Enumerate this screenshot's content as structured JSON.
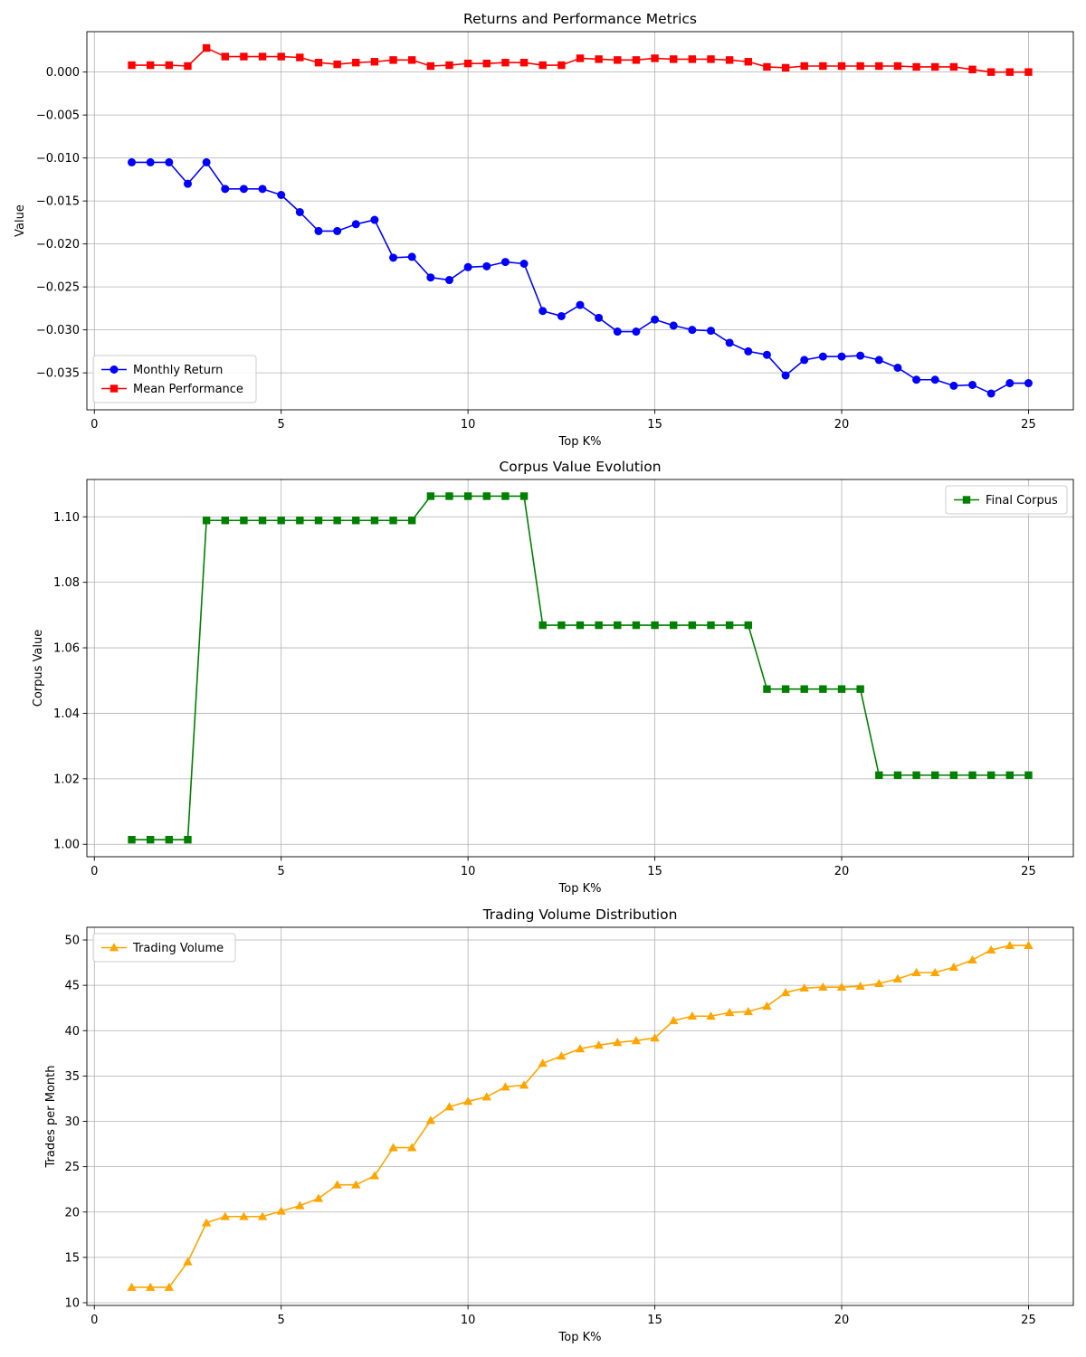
{
  "chart_data": [
    {
      "type": "line",
      "title": "Returns and Performance Metrics",
      "xlabel": "Top K%",
      "ylabel": "Value",
      "xlim": [
        -0.2,
        26.2
      ],
      "ylim": [
        -0.0393,
        0.0047
      ],
      "xticks": [
        0,
        5,
        10,
        15,
        20,
        25
      ],
      "xtick_labels": [
        "0",
        "5",
        "10",
        "15",
        "20",
        "25"
      ],
      "yticks": [
        -0.035,
        -0.03,
        -0.025,
        -0.02,
        -0.015,
        -0.01,
        -0.005,
        0.0
      ],
      "ytick_labels": [
        "−0.035",
        "−0.030",
        "−0.025",
        "−0.020",
        "−0.015",
        "−0.010",
        "−0.005",
        "0.000"
      ],
      "grid": true,
      "legend_position": "lower-left",
      "x": [
        1,
        1.5,
        2,
        2.5,
        3,
        3.5,
        4,
        4.5,
        5,
        5.5,
        6,
        6.5,
        7,
        7.5,
        8,
        8.5,
        9,
        9.5,
        10,
        10.5,
        11,
        11.5,
        12,
        12.5,
        13,
        13.5,
        14,
        14.5,
        15,
        15.5,
        16,
        16.5,
        17,
        17.5,
        18,
        18.5,
        19,
        19.5,
        20,
        20.5,
        21,
        21.5,
        22,
        22.5,
        23,
        23.5,
        24,
        24.5,
        25
      ],
      "series": [
        {
          "name": "Monthly Return",
          "color": "#0000ff",
          "marker": "circle",
          "values": [
            -0.0105,
            -0.0105,
            -0.0105,
            -0.013,
            -0.0105,
            -0.0136,
            -0.0136,
            -0.0136,
            -0.0143,
            -0.0163,
            -0.0185,
            -0.0185,
            -0.0177,
            -0.0172,
            -0.0216,
            -0.0215,
            -0.0239,
            -0.0242,
            -0.0227,
            -0.0226,
            -0.0221,
            -0.0223,
            -0.0278,
            -0.0284,
            -0.0271,
            -0.0286,
            -0.0302,
            -0.0302,
            -0.0288,
            -0.0295,
            -0.03,
            -0.0301,
            -0.0315,
            -0.0325,
            -0.0329,
            -0.0353,
            -0.0335,
            -0.0331,
            -0.0331,
            -0.033,
            -0.0335,
            -0.0344,
            -0.0358,
            -0.0358,
            -0.0365,
            -0.0364,
            -0.0374,
            -0.0362,
            -0.0362
          ]
        },
        {
          "name": "Mean Performance",
          "color": "#ff0000",
          "marker": "square",
          "values": [
            0.0008,
            0.0008,
            0.0008,
            0.0007,
            0.0028,
            0.0018,
            0.0018,
            0.0018,
            0.0018,
            0.0017,
            0.0011,
            0.0009,
            0.0011,
            0.0012,
            0.0014,
            0.0014,
            0.0007,
            0.0008,
            0.001,
            0.001,
            0.0011,
            0.0011,
            0.0008,
            0.0008,
            0.0016,
            0.0015,
            0.0014,
            0.0014,
            0.0016,
            0.0015,
            0.0015,
            0.0015,
            0.0014,
            0.0012,
            0.0006,
            0.0005,
            0.0007,
            0.0007,
            0.0007,
            0.0007,
            0.0007,
            0.0007,
            0.0006,
            0.0006,
            0.0006,
            0.0003,
            0.0,
            0.0,
            0.0
          ]
        }
      ]
    },
    {
      "type": "line",
      "title": "Corpus Value Evolution",
      "xlabel": "Top K%",
      "ylabel": "Corpus Value",
      "xlim": [
        -0.2,
        26.2
      ],
      "ylim": [
        0.9962,
        1.1114
      ],
      "xticks": [
        0,
        5,
        10,
        15,
        20,
        25
      ],
      "xtick_labels": [
        "0",
        "5",
        "10",
        "15",
        "20",
        "25"
      ],
      "yticks": [
        1.0,
        1.02,
        1.04,
        1.06,
        1.08,
        1.1
      ],
      "ytick_labels": [
        "1.00",
        "1.02",
        "1.04",
        "1.06",
        "1.08",
        "1.10"
      ],
      "grid": true,
      "legend_position": "upper-right",
      "x": [
        1,
        1.5,
        2,
        2.5,
        3,
        3.5,
        4,
        4.5,
        5,
        5.5,
        6,
        6.5,
        7,
        7.5,
        8,
        8.5,
        9,
        9.5,
        10,
        10.5,
        11,
        11.5,
        12,
        12.5,
        13,
        13.5,
        14,
        14.5,
        15,
        15.5,
        16,
        16.5,
        17,
        17.5,
        18,
        18.5,
        19,
        19.5,
        20,
        20.5,
        21,
        21.5,
        22,
        22.5,
        23,
        23.5,
        24,
        24.5,
        25
      ],
      "series": [
        {
          "name": "Final Corpus",
          "color": "#008000",
          "marker": "square",
          "values": [
            1.0014,
            1.0014,
            1.0014,
            1.0014,
            1.0989,
            1.0989,
            1.0989,
            1.0989,
            1.0989,
            1.0989,
            1.0989,
            1.0989,
            1.0989,
            1.0989,
            1.0989,
            1.0989,
            1.1063,
            1.1063,
            1.1063,
            1.1063,
            1.1063,
            1.1063,
            1.0669,
            1.0669,
            1.0669,
            1.0669,
            1.0669,
            1.0669,
            1.0669,
            1.0669,
            1.0669,
            1.0669,
            1.0669,
            1.0669,
            1.0474,
            1.0474,
            1.0474,
            1.0474,
            1.0474,
            1.0474,
            1.0211,
            1.0211,
            1.0211,
            1.0211,
            1.0211,
            1.0211,
            1.0211,
            1.0211,
            1.0211
          ]
        }
      ]
    },
    {
      "type": "line",
      "title": "Trading Volume Distribution",
      "xlabel": "Top K%",
      "ylabel": "Trades per Month",
      "xlim": [
        -0.2,
        26.2
      ],
      "ylim": [
        9.7,
        51.4
      ],
      "xticks": [
        0,
        5,
        10,
        15,
        20,
        25
      ],
      "xtick_labels": [
        "0",
        "5",
        "10",
        "15",
        "20",
        "25"
      ],
      "yticks": [
        10,
        15,
        20,
        25,
        30,
        35,
        40,
        45,
        50
      ],
      "ytick_labels": [
        "10",
        "15",
        "20",
        "25",
        "30",
        "35",
        "40",
        "45",
        "50"
      ],
      "grid": true,
      "legend_position": "upper-left",
      "x": [
        1,
        1.5,
        2,
        2.5,
        3,
        3.5,
        4,
        4.5,
        5,
        5.5,
        6,
        6.5,
        7,
        7.5,
        8,
        8.5,
        9,
        9.5,
        10,
        10.5,
        11,
        11.5,
        12,
        12.5,
        13,
        13.5,
        14,
        14.5,
        15,
        15.5,
        16,
        16.5,
        17,
        17.5,
        18,
        18.5,
        19,
        19.5,
        20,
        20.5,
        21,
        21.5,
        22,
        22.5,
        23,
        23.5,
        24,
        24.5,
        25
      ],
      "series": [
        {
          "name": "Trading Volume",
          "color": "#ffa500",
          "marker": "triangle",
          "values": [
            11.7,
            11.7,
            11.7,
            14.5,
            18.8,
            19.5,
            19.5,
            19.5,
            20.1,
            20.7,
            21.5,
            23.0,
            23.0,
            24.0,
            27.1,
            27.1,
            30.1,
            31.6,
            32.2,
            32.7,
            33.8,
            34.0,
            36.4,
            37.2,
            38.0,
            38.4,
            38.7,
            38.9,
            39.2,
            41.1,
            41.6,
            41.6,
            42.0,
            42.1,
            42.7,
            44.2,
            44.7,
            44.8,
            44.8,
            44.9,
            45.2,
            45.7,
            46.4,
            46.4,
            47.0,
            47.8,
            48.9,
            49.4,
            49.4
          ]
        }
      ]
    }
  ]
}
